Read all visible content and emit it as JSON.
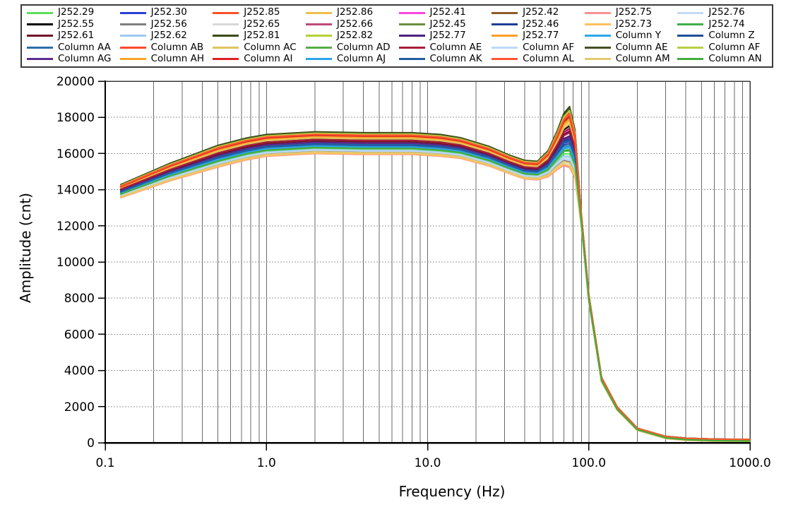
{
  "window": {
    "background": "#FFFFFF"
  },
  "chart_data": {
    "type": "line",
    "title": "",
    "xlabel": "Frequency (Hz)",
    "ylabel": "Amplitude (cnt)",
    "x_scale": "log",
    "y_scale": "linear",
    "xlim": [
      0.1,
      1000.0
    ],
    "ylim": [
      0,
      20000
    ],
    "x_tick_values": [
      0.1,
      1.0,
      10.0,
      100.0,
      1000.0
    ],
    "x_tick_labels": [
      "0.1",
      "1.0",
      "10.0",
      "100.0",
      "1000.0"
    ],
    "y_tick_values": [
      0,
      2000,
      4000,
      6000,
      8000,
      10000,
      12000,
      14000,
      16000,
      18000,
      20000
    ],
    "y_tick_labels": [
      "0",
      "2000",
      "4000",
      "6000",
      "8000",
      "10000",
      "12000",
      "14000",
      "16000",
      "18000",
      "20000"
    ],
    "grid": "log minor vertical lines solid gray; horizontal dashed gray every 2000",
    "legend_position": "top",
    "series_value_rule": "series value at x[i] = base_curve[i] + offset * spread_weights[i]",
    "x": [
      0.125,
      0.25,
      0.5,
      0.75,
      1,
      2,
      4,
      8,
      12,
      16,
      24,
      32,
      40,
      48,
      56,
      64,
      70,
      76,
      82,
      90,
      100,
      120,
      150,
      200,
      300,
      400,
      600,
      1000
    ],
    "base_curve": [
      13950,
      15000,
      15900,
      16300,
      16500,
      16650,
      16600,
      16600,
      16500,
      16350,
      15900,
      15450,
      15150,
      15100,
      15500,
      16300,
      16900,
      17050,
      16100,
      12300,
      8000,
      3500,
      1900,
      750,
      300,
      200,
      150,
      130
    ],
    "spread_weights": [
      0.6,
      0.8,
      1,
      1,
      1,
      1,
      1,
      1,
      1,
      0.95,
      0.9,
      0.85,
      0.85,
      0.85,
      1.2,
      1.8,
      2.4,
      2.8,
      2.2,
      0.5,
      0.3,
      0.2,
      0.15,
      0.1,
      0.1,
      0.1,
      0.1,
      0.1
    ],
    "series": [
      {
        "name": "J252.29",
        "color": "#5CE05C",
        "offset": -380
      },
      {
        "name": "J252.30",
        "color": "#2B3FD6",
        "offset": -140
      },
      {
        "name": "J252.85",
        "color": "#FF4F26",
        "offset": 480
      },
      {
        "name": "J252.86",
        "color": "#EDBE4A",
        "offset": 260
      },
      {
        "name": "J252.41",
        "color": "#FF45E0",
        "offset": 90
      },
      {
        "name": "J252.42",
        "color": "#8F5B25",
        "offset": 430
      },
      {
        "name": "J252.75",
        "color": "#FC9191",
        "offset": -650
      },
      {
        "name": "J252.76",
        "color": "#C3D9F6",
        "offset": -500
      },
      {
        "name": "J252.55",
        "color": "#000000",
        "offset": 170
      },
      {
        "name": "J252.56",
        "color": "#7F7F7F",
        "offset": -540
      },
      {
        "name": "J252.65",
        "color": "#D8D8D8",
        "offset": -580
      },
      {
        "name": "J252.66",
        "color": "#BE4A78",
        "offset": 30
      },
      {
        "name": "J252.45",
        "color": "#6B8E3B",
        "offset": 330
      },
      {
        "name": "J252.46",
        "color": "#1F3D99",
        "offset": -90
      },
      {
        "name": "J252.73",
        "color": "#FFC05C",
        "offset": -620
      },
      {
        "name": "J252.74",
        "color": "#3FAE49",
        "offset": -300
      },
      {
        "name": "J252.61",
        "color": "#701226",
        "offset": 60
      },
      {
        "name": "J252.62",
        "color": "#9CC9F2",
        "offset": -430
      },
      {
        "name": "J252.81",
        "color": "#3A4A12",
        "offset": 550
      },
      {
        "name": "J252.82",
        "color": "#B4D133",
        "offset": 500
      },
      {
        "name": "J252.77",
        "color": "#4B2080",
        "offset": -30
      },
      {
        "name": "J252.77",
        "color": "#FF9D26",
        "offset": 390
      },
      {
        "name": "Column Y",
        "color": "#29A8E8",
        "offset": -260
      },
      {
        "name": "Column Z",
        "color": "#1F4D99",
        "offset": -180
      },
      {
        "name": "Column AA",
        "color": "#2E6FA8",
        "offset": -220
      },
      {
        "name": "Column AB",
        "color": "#FF4A2A",
        "offset": 450
      },
      {
        "name": "Column AC",
        "color": "#DFC45C",
        "offset": 210
      },
      {
        "name": "Column AD",
        "color": "#57AD49",
        "offset": 350
      },
      {
        "name": "Column AE",
        "color": "#A81E3C",
        "offset": 120
      },
      {
        "name": "Column AF",
        "color": "#BBD9F8",
        "offset": -460
      },
      {
        "name": "Column AE",
        "color": "#44511F",
        "offset": 520
      },
      {
        "name": "Column AF",
        "color": "#B8CE44",
        "offset": 470
      },
      {
        "name": "Column AG",
        "color": "#5B2D8C",
        "offset": -60
      },
      {
        "name": "Column AH",
        "color": "#FFA226",
        "offset": 300
      },
      {
        "name": "Column AI",
        "color": "#DD2222",
        "offset": 360
      },
      {
        "name": "Column AJ",
        "color": "#2BA3E8",
        "offset": -240
      },
      {
        "name": "Column AK",
        "color": "#1F5FA3",
        "offset": -120
      },
      {
        "name": "Column AL",
        "color": "#FF5630",
        "offset": 410
      },
      {
        "name": "Column AM",
        "color": "#E3CA6E",
        "offset": -560
      },
      {
        "name": "Column AN",
        "color": "#45AD3B",
        "offset": -320
      }
    ],
    "plot_colors": {
      "axis": "#000000",
      "frame_dark": "#3a3a3a",
      "grid_vertical": "#6a6a6a",
      "grid_horizontal": "#9a9a9a"
    }
  }
}
